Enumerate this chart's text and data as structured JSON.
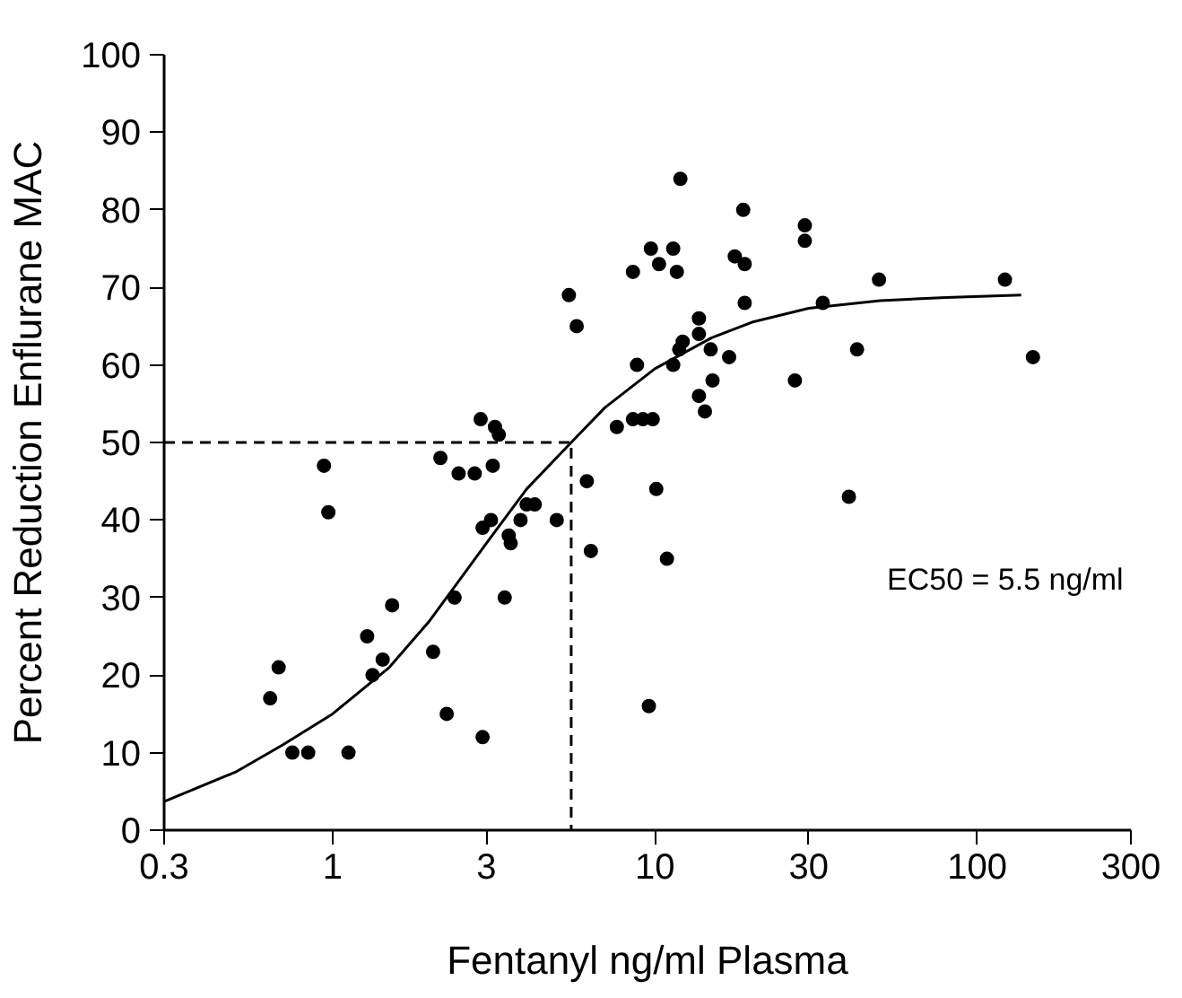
{
  "chart_data": {
    "type": "scatter",
    "xlabel": "Fentanyl ng/ml Plasma",
    "ylabel": "Percent Reduction Enflurane MAC",
    "log": "x",
    "xlim": [
      0.3,
      300
    ],
    "ylim": [
      0,
      100
    ],
    "xticks": [
      0.3,
      1,
      3,
      10,
      30,
      100,
      300
    ],
    "yticks": [
      0,
      10,
      20,
      30,
      40,
      50,
      60,
      70,
      80,
      90,
      100
    ],
    "grid": false,
    "annotations": [
      "EC50 = 5.5 ng/ml"
    ],
    "series": [
      {
        "type": "scatter",
        "color": "#000000",
        "marker": "circle",
        "x": [
          0.64,
          0.68,
          0.75,
          0.84,
          0.94,
          0.97,
          1.12,
          1.28,
          1.33,
          1.43,
          1.53,
          2.05,
          2.26,
          2.16,
          2.39,
          2.46,
          2.76,
          2.92,
          2.88,
          3.19,
          3.28,
          3.14,
          2.92,
          3.1,
          3.52,
          3.57,
          3.42,
          3.83,
          4.0,
          4.24,
          4.96,
          6.15,
          6.33,
          7.62,
          5.41,
          5.72,
          8.55,
          9.72,
          11.4,
          10.3,
          11.7,
          12.0,
          18.8,
          17.7,
          19.0,
          29.2,
          29.2,
          49.6,
          122,
          33.2,
          13.7,
          19.0,
          13.7,
          12.2,
          11.9,
          11.4,
          14.9,
          17.0,
          8.8,
          15.1,
          27.2,
          42.4,
          149,
          8.55,
          9.18,
          9.85,
          13.7,
          14.3,
          10.1,
          10.9,
          40.0,
          9.58
        ],
        "values": [
          17,
          21,
          10,
          10,
          47,
          41,
          10,
          25,
          20,
          22,
          29,
          23,
          15,
          48,
          30,
          46,
          46,
          12,
          53,
          52,
          51,
          47,
          39,
          40,
          38,
          37,
          30,
          40,
          42,
          42,
          40,
          45,
          36,
          52,
          69,
          65,
          72,
          75,
          75,
          73,
          72,
          84,
          80,
          74,
          73,
          78,
          76,
          71,
          71,
          68,
          66,
          68,
          64,
          63,
          62,
          60,
          62,
          61,
          60,
          58,
          58,
          62,
          61,
          53,
          53,
          53,
          56,
          54,
          44,
          35,
          43,
          16
        ]
      },
      {
        "type": "line",
        "color": "#000000",
        "line_style": "solid",
        "marker": "none",
        "x": [
          0.3,
          0.5,
          0.7,
          1,
          1.5,
          2,
          3,
          4,
          5.5,
          7,
          10,
          15,
          20,
          30,
          50,
          80,
          137
        ],
        "values": [
          3.7,
          7.5,
          11,
          15,
          21,
          27,
          37,
          44,
          50,
          54.5,
          59.5,
          63.5,
          65.5,
          67.3,
          68.3,
          68.7,
          69
        ]
      },
      {
        "type": "line",
        "color": "#000000",
        "line_style": "dashed",
        "marker": "none",
        "x": [
          0.3,
          5.5,
          5.5
        ],
        "values": [
          50,
          50,
          0
        ]
      }
    ]
  }
}
